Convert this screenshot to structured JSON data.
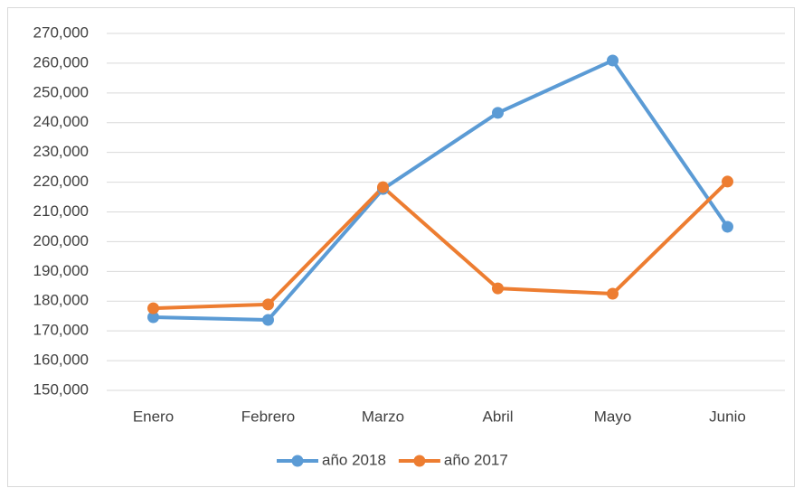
{
  "chart_data": {
    "type": "line",
    "categories": [
      "Enero",
      "Febrero",
      "Marzo",
      "Abril",
      "Mayo",
      "Junio"
    ],
    "series": [
      {
        "name": "año 2018",
        "color": "#5b9bd5",
        "values": [
          174600,
          173700,
          217700,
          243300,
          260900,
          205000
        ]
      },
      {
        "name": "año 2017",
        "color": "#ed7d31",
        "values": [
          177600,
          178900,
          218300,
          184300,
          182500,
          220200
        ]
      }
    ],
    "ylim": [
      150000,
      270000
    ],
    "yticks": [
      {
        "value": 150000,
        "label": "150,000"
      },
      {
        "value": 160000,
        "label": "160,000"
      },
      {
        "value": 170000,
        "label": "170,000"
      },
      {
        "value": 180000,
        "label": "180,000"
      },
      {
        "value": 190000,
        "label": "190,000"
      },
      {
        "value": 200000,
        "label": "200,000"
      },
      {
        "value": 210000,
        "label": "210,000"
      },
      {
        "value": 220000,
        "label": "220,000"
      },
      {
        "value": 230000,
        "label": "230,000"
      },
      {
        "value": 240000,
        "label": "240,000"
      },
      {
        "value": 250000,
        "label": "250,000"
      },
      {
        "value": 260000,
        "label": "260,000"
      },
      {
        "value": 270000,
        "label": "270,000"
      }
    ],
    "grid": true,
    "legend": "bottom"
  }
}
